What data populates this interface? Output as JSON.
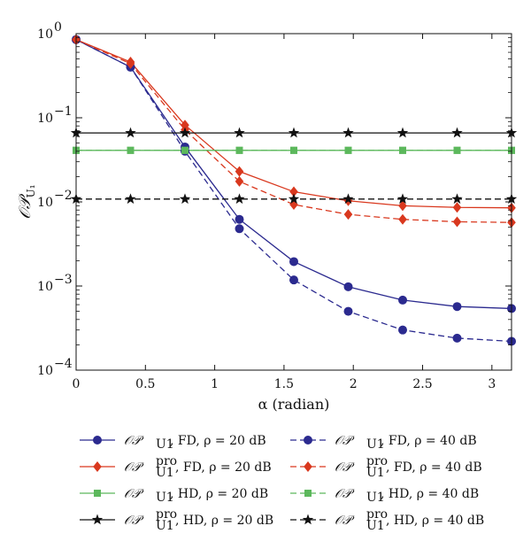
{
  "chart_data": {
    "type": "line",
    "xlabel": "α (radian)",
    "ylabel": "𝒪𝒫",
    "ylabel_sub": "U₁",
    "xlim": [
      0,
      3.1416
    ],
    "ylim": [
      0.0001,
      1
    ],
    "yscale": "log",
    "x_ticks": [
      0,
      0.5,
      1,
      1.5,
      2,
      2.5,
      3
    ],
    "x_tick_labels": [
      "0",
      "0.5",
      "1",
      "1.5",
      "2",
      "2.5",
      "3"
    ],
    "y_ticks": [
      0.0001,
      0.001,
      0.01,
      0.1,
      1
    ],
    "y_tick_base": "10",
    "y_tick_exponents": [
      "−4",
      "−3",
      "−2",
      "−1",
      "0"
    ],
    "grid": false,
    "x": [
      0,
      0.3927,
      0.7854,
      1.1781,
      1.5708,
      1.9635,
      2.3562,
      2.7489,
      3.1416
    ],
    "series": [
      {
        "name": "𝒪𝒫U1, FD, ρ = 20 dB",
        "color": "#2b2a8f",
        "dashed": false,
        "marker": "circle",
        "values": [
          0.85,
          0.4,
          0.045,
          0.0062,
          0.00195,
          0.00098,
          0.00068,
          0.00057,
          0.00054
        ]
      },
      {
        "name": "𝒪𝒫U1, FD, ρ = 40 dB",
        "color": "#2b2a8f",
        "dashed": true,
        "marker": "circle",
        "values": [
          0.85,
          0.4,
          0.04,
          0.0048,
          0.00118,
          0.0005,
          0.0003,
          0.00024,
          0.00022
        ]
      },
      {
        "name": "𝒪𝒫proU1, FD, ρ = 20 dB",
        "color": "#d9381e",
        "dashed": false,
        "marker": "diamond",
        "values": [
          0.85,
          0.46,
          0.082,
          0.023,
          0.0132,
          0.0103,
          0.009,
          0.0086,
          0.0085
        ]
      },
      {
        "name": "𝒪𝒫proU1, FD, ρ = 40 dB",
        "color": "#d9381e",
        "dashed": true,
        "marker": "diamond",
        "values": [
          0.85,
          0.44,
          0.072,
          0.0175,
          0.0093,
          0.0071,
          0.0062,
          0.0058,
          0.0057
        ]
      },
      {
        "name": "𝒪𝒫U1, HD, ρ = 20 dB",
        "color": "#5cb85c",
        "dashed": false,
        "marker": "square",
        "values": [
          0.041,
          0.041,
          0.041,
          0.041,
          0.041,
          0.041,
          0.041,
          0.041,
          0.041
        ]
      },
      {
        "name": "𝒪𝒫U1, HD, ρ = 40 dB",
        "color": "#5cb85c",
        "dashed": true,
        "marker": "square",
        "values": [
          0.041,
          0.041,
          0.041,
          0.041,
          0.041,
          0.041,
          0.041,
          0.041,
          0.041
        ]
      },
      {
        "name": "𝒪𝒫proU1, HD, ρ = 20 dB",
        "color": "#111111",
        "dashed": false,
        "marker": "star",
        "values": [
          0.066,
          0.066,
          0.066,
          0.066,
          0.066,
          0.066,
          0.066,
          0.066,
          0.066
        ]
      },
      {
        "name": "𝒪𝒫proU1, HD, ρ = 40 dB",
        "color": "#111111",
        "dashed": true,
        "marker": "star",
        "values": [
          0.0108,
          0.0108,
          0.0108,
          0.0108,
          0.0108,
          0.0108,
          0.0108,
          0.0108,
          0.0108
        ]
      }
    ],
    "legend": {
      "placement": "bottom",
      "columns": 2,
      "entries": [
        {
          "series": 0,
          "op": "𝒪𝒫",
          "sup": "",
          "sub": "U1",
          "rest": ", FD, ρ = 20 dB"
        },
        {
          "series": 1,
          "op": "𝒪𝒫",
          "sup": "",
          "sub": "U1",
          "rest": ", FD, ρ = 40 dB"
        },
        {
          "series": 2,
          "op": "𝒪𝒫",
          "sup": "pro",
          "sub": "U1",
          "rest": ", FD, ρ = 20 dB"
        },
        {
          "series": 3,
          "op": "𝒪𝒫",
          "sup": "pro",
          "sub": "U1",
          "rest": ", FD, ρ = 40 dB"
        },
        {
          "series": 4,
          "op": "𝒪𝒫",
          "sup": "",
          "sub": "U1",
          "rest": ", HD, ρ = 20 dB"
        },
        {
          "series": 5,
          "op": "𝒪𝒫",
          "sup": "",
          "sub": "U1",
          "rest": ", HD, ρ = 40 dB"
        },
        {
          "series": 6,
          "op": "𝒪𝒫",
          "sup": "pro",
          "sub": "U1",
          "rest": ", HD, ρ = 20 dB"
        },
        {
          "series": 7,
          "op": "𝒪𝒫",
          "sup": "pro",
          "sub": "U1",
          "rest": ", HD, ρ = 40 dB"
        }
      ]
    }
  }
}
